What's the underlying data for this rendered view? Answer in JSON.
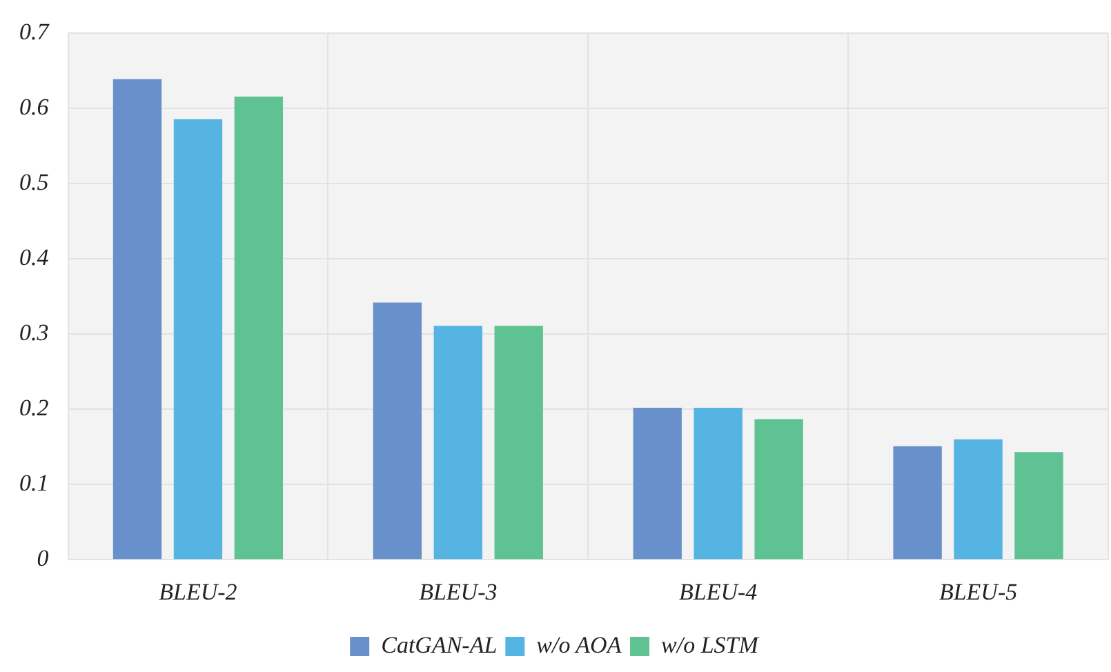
{
  "chart_data": {
    "type": "bar",
    "categories": [
      "BLEU-2",
      "BLEU-3",
      "BLEU-4",
      "BLEU-5"
    ],
    "series": [
      {
        "name": "CatGAN-AL",
        "color": "#6890cb",
        "values": [
          0.639,
          0.342,
          0.202,
          0.151
        ]
      },
      {
        "name": "w/o AOA",
        "color": "#56b4e2",
        "values": [
          0.586,
          0.311,
          0.202,
          0.16
        ]
      },
      {
        "name": "w/o LSTM",
        "color": "#5fc292",
        "values": [
          0.616,
          0.311,
          0.187,
          0.143
        ]
      }
    ],
    "ylim": [
      0,
      0.7
    ],
    "yticks": [
      0,
      0.1,
      0.2,
      0.3,
      0.4,
      0.5,
      0.6,
      0.7
    ],
    "grid": true,
    "legend": "bottom"
  }
}
